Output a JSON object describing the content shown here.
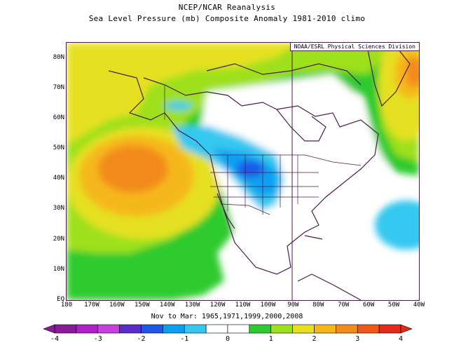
{
  "header": {
    "title": "NCEP/NCAR Reanalysis",
    "subtitle": "Sea Level Pressure (mb) Composite Anomaly 1981-2010 climo"
  },
  "map": {
    "credit": "NOAA/ESRL Physical Sciences Division",
    "lat_labels": [
      "80N",
      "70N",
      "60N",
      "50N",
      "40N",
      "30N",
      "20N",
      "10N",
      "EQ"
    ],
    "lon_labels": [
      "180",
      "170W",
      "160W",
      "150W",
      "140W",
      "130W",
      "120W",
      "110W",
      "100W",
      "90W",
      "80W",
      "70W",
      "60W",
      "50W",
      "40W"
    ],
    "extent": {
      "lon": [
        -180,
        -40
      ],
      "lat": [
        0,
        85
      ]
    }
  },
  "footer": {
    "caption": "Nov to Mar: 1965,1971,1999,2000,2008"
  },
  "colorbar": {
    "labels": [
      "-4",
      "-3",
      "-2",
      "-1",
      "0",
      "1",
      "2",
      "3",
      "4"
    ],
    "colors": [
      "#8a1a9a",
      "#b020c8",
      "#c83fe0",
      "#5a2cc8",
      "#1f58e8",
      "#0aa0f0",
      "#36c8f0",
      "#ffffff",
      "#ffffff",
      "#2eca2e",
      "#9ee01e",
      "#e6e020",
      "#f5b81c",
      "#f38a1c",
      "#ef5a1c",
      "#e02a1a"
    ]
  }
}
